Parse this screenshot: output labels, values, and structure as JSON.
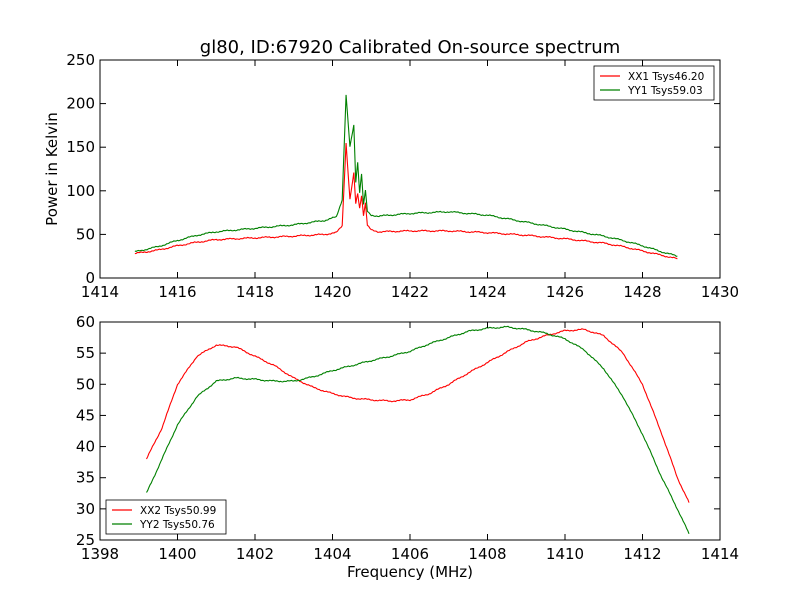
{
  "figure": {
    "title": "gl80, ID:67920 Calibrated On-source spectrum"
  },
  "chart_data": [
    {
      "type": "line",
      "ylabel": "Power in Kelvin",
      "xlabel": "",
      "xlim": [
        1414,
        1430
      ],
      "ylim": [
        0,
        250
      ],
      "xticks": [
        "1414",
        "1416",
        "1418",
        "1420",
        "1422",
        "1424",
        "1426",
        "1428",
        "1430"
      ],
      "yticks": [
        "0",
        "50",
        "100",
        "150",
        "200",
        "250"
      ],
      "legend_position": "top-right",
      "series": [
        {
          "name": "XX1 Tsys46.20",
          "color": "#ff0000",
          "x": [
            1414.9,
            1415.5,
            1416.0,
            1416.5,
            1417.0,
            1418.0,
            1419.0,
            1419.8,
            1420.1,
            1420.25,
            1420.35,
            1420.45,
            1420.55,
            1420.6,
            1420.65,
            1420.7,
            1420.75,
            1420.8,
            1420.85,
            1420.9,
            1421.0,
            1421.2,
            1422.0,
            1423.0,
            1424.0,
            1425.0,
            1426.0,
            1427.0,
            1427.5,
            1428.0,
            1428.5,
            1428.9
          ],
          "y": [
            28,
            32,
            37,
            41,
            44,
            46,
            48,
            50,
            52,
            60,
            155,
            90,
            120,
            85,
            97,
            80,
            95,
            72,
            86,
            60,
            55,
            53,
            54,
            54,
            52,
            49,
            45,
            40,
            36,
            31,
            26,
            22
          ]
        },
        {
          "name": "YY1 Tsys59.03",
          "color": "#008000",
          "x": [
            1414.9,
            1415.5,
            1416.0,
            1416.5,
            1417.0,
            1418.0,
            1419.0,
            1419.8,
            1420.1,
            1420.25,
            1420.35,
            1420.45,
            1420.55,
            1420.6,
            1420.65,
            1420.7,
            1420.75,
            1420.8,
            1420.85,
            1420.9,
            1421.0,
            1421.2,
            1422.0,
            1423.0,
            1424.0,
            1425.0,
            1426.0,
            1427.0,
            1427.5,
            1428.0,
            1428.5,
            1428.9
          ],
          "y": [
            30,
            36,
            43,
            49,
            53,
            57,
            61,
            66,
            70,
            90,
            210,
            150,
            175,
            110,
            133,
            98,
            120,
            84,
            100,
            76,
            72,
            71,
            74,
            76,
            72,
            64,
            56,
            48,
            43,
            37,
            30,
            25
          ]
        }
      ]
    },
    {
      "type": "line",
      "xlabel": "Frequency (MHz)",
      "ylabel": "",
      "xlim": [
        1398,
        1414
      ],
      "ylim": [
        25,
        60
      ],
      "xticks": [
        "1398",
        "1400",
        "1402",
        "1404",
        "1406",
        "1408",
        "1410",
        "1412",
        "1414"
      ],
      "yticks": [
        "25",
        "30",
        "35",
        "40",
        "45",
        "50",
        "55",
        "60"
      ],
      "legend_position": "bottom-left",
      "series": [
        {
          "name": "XX2 Tsys50.99",
          "color": "#ff0000",
          "x": [
            1399.2,
            1399.6,
            1400.0,
            1400.5,
            1401.0,
            1401.5,
            1402.0,
            1402.5,
            1403.0,
            1403.5,
            1404.0,
            1404.5,
            1405.0,
            1405.5,
            1406.0,
            1406.5,
            1407.0,
            1407.5,
            1408.0,
            1408.5,
            1409.0,
            1409.5,
            1410.0,
            1410.5,
            1411.0,
            1411.5,
            1412.0,
            1412.5,
            1412.9,
            1413.2
          ],
          "y": [
            38,
            43,
            50,
            54.5,
            56.3,
            56,
            54.5,
            53,
            51,
            49.5,
            48.5,
            47.8,
            47.5,
            47.3,
            47.5,
            48.5,
            50,
            51.8,
            53.5,
            55.2,
            56.8,
            57.8,
            58.6,
            58.8,
            57.8,
            55,
            50,
            42,
            35,
            31
          ]
        },
        {
          "name": "YY2 Tsys50.76",
          "color": "#008000",
          "x": [
            1399.2,
            1399.6,
            1400.0,
            1400.5,
            1401.0,
            1401.5,
            1402.0,
            1402.5,
            1403.0,
            1403.5,
            1404.0,
            1404.5,
            1405.0,
            1405.5,
            1406.0,
            1406.5,
            1407.0,
            1407.5,
            1408.0,
            1408.5,
            1409.0,
            1409.5,
            1410.0,
            1410.5,
            1411.0,
            1411.5,
            1412.0,
            1412.5,
            1412.9,
            1413.2
          ],
          "y": [
            32.5,
            38,
            43.5,
            48,
            50.5,
            51,
            50.8,
            50.5,
            50.5,
            51.2,
            52.2,
            53,
            53.8,
            54.5,
            55.3,
            56.5,
            57.5,
            58.5,
            59,
            59.2,
            58.8,
            58.2,
            57.3,
            55.5,
            52.5,
            48,
            42,
            35,
            30,
            26
          ]
        }
      ]
    }
  ]
}
